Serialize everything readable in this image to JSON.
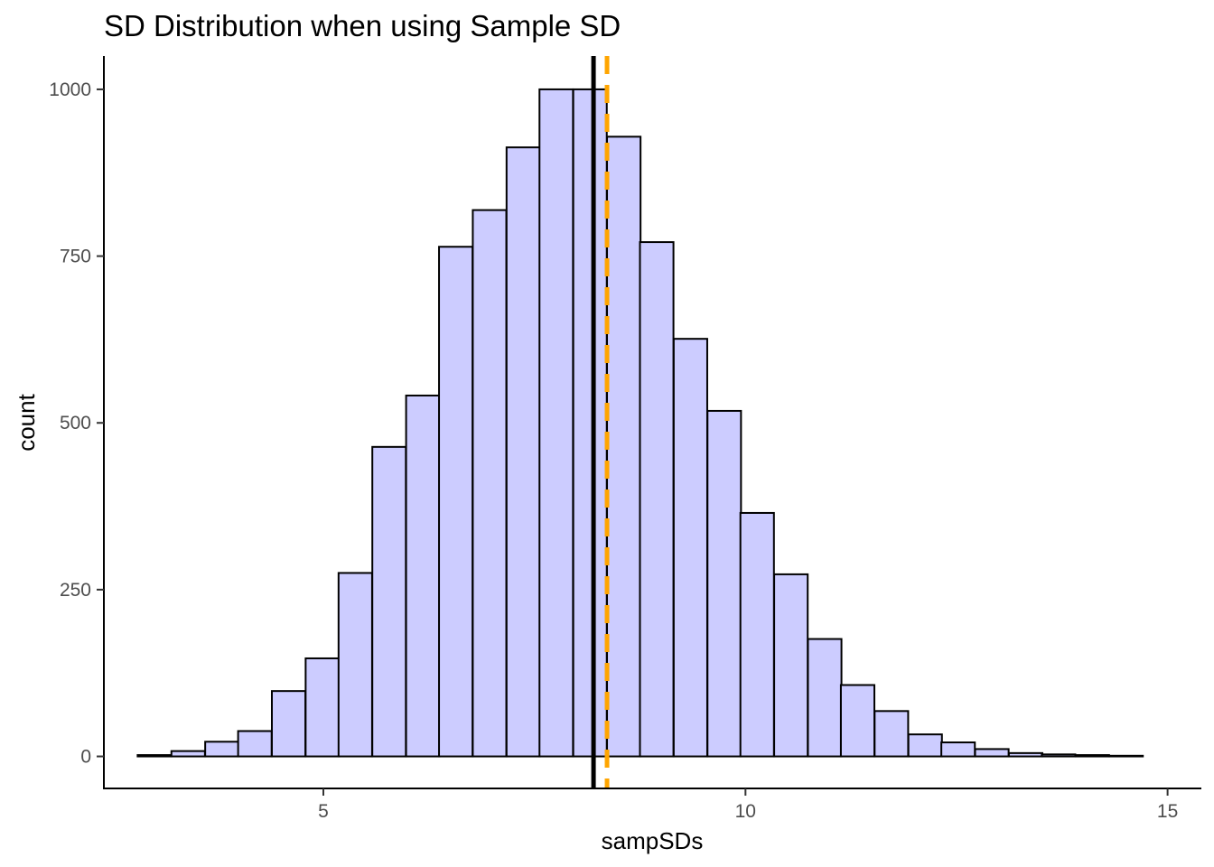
{
  "chart_data": {
    "type": "bar",
    "title": "SD Distribution when using Sample SD",
    "xlabel": "sampSDs",
    "ylabel": "count",
    "xlim": [
      2.4,
      15.4
    ],
    "ylim": [
      -48,
      1050
    ],
    "x_ticks": [
      5,
      10,
      15
    ],
    "y_ticks": [
      0,
      250,
      500,
      750,
      1000
    ],
    "bin_width": 0.397,
    "bin_starts": [
      2.8,
      3.2,
      3.6,
      3.99,
      4.39,
      4.79,
      5.18,
      5.58,
      5.98,
      6.37,
      6.77,
      7.17,
      7.56,
      7.96,
      8.36,
      8.75,
      9.15,
      9.55,
      9.94,
      10.34,
      10.74,
      11.13,
      11.53,
      11.93,
      12.32,
      12.72,
      13.12,
      13.51,
      13.91,
      14.31
    ],
    "counts": [
      2,
      8,
      22,
      38,
      98,
      147,
      275,
      464,
      541,
      764,
      819,
      913,
      1000,
      1000,
      929,
      771,
      626,
      518,
      365,
      273,
      176,
      107,
      68,
      33,
      21,
      11,
      5,
      3,
      2,
      1
    ],
    "fill_color": "#ccccff",
    "outline_color": "#000000",
    "reference_lines": [
      {
        "x": 8.2,
        "color": "#000000",
        "style": "solid"
      },
      {
        "x": 8.36,
        "color": "#ffa500",
        "style": "dashed"
      }
    ],
    "grid": false,
    "legend": "none"
  }
}
